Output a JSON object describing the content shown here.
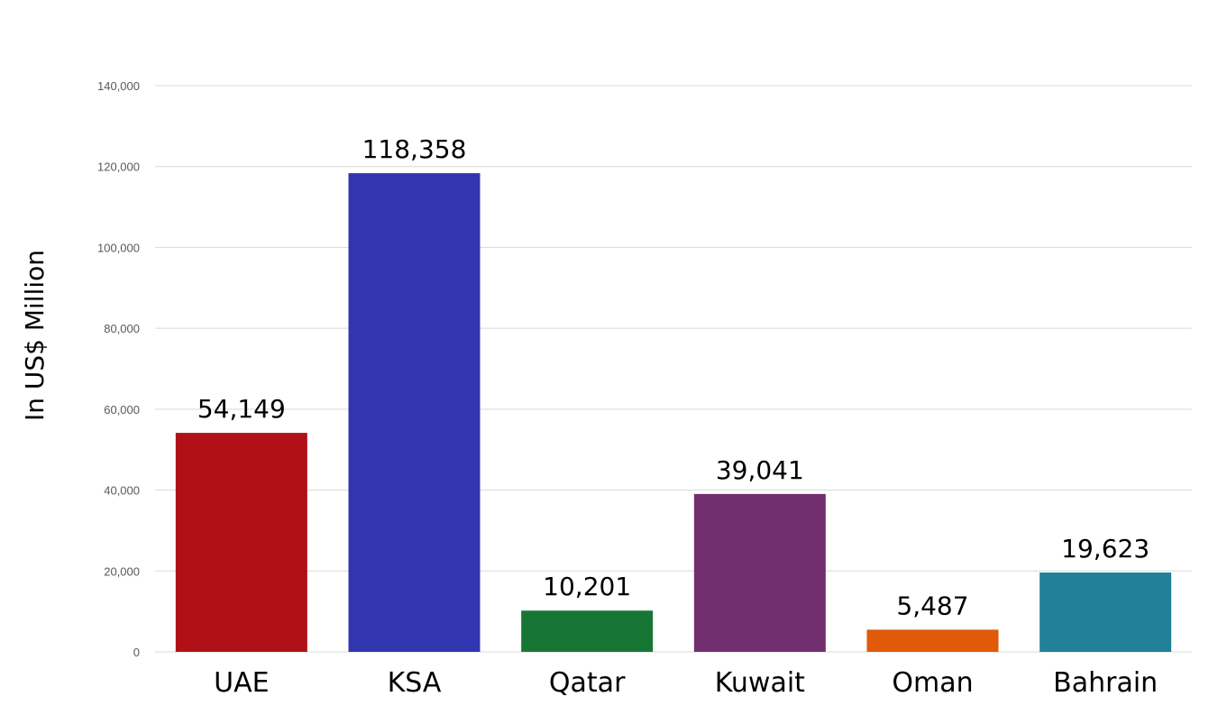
{
  "chart_data": {
    "type": "bar",
    "title": "",
    "xlabel": "",
    "ylabel": "In US$ Million",
    "categories": [
      "UAE",
      "KSA",
      "Qatar",
      "Kuwait",
      "Oman",
      "Bahrain"
    ],
    "values": [
      54149,
      118358,
      10201,
      39041,
      5487,
      19623
    ],
    "value_labels": [
      "54,149",
      "118,358",
      "10,201",
      "39,041",
      "5,487",
      "19,623"
    ],
    "colors": [
      "#b01117",
      "#3136b0",
      "#187634",
      "#722f6f",
      "#e05a0a",
      "#228199"
    ],
    "ylim": [
      0,
      140000
    ],
    "yticks": [
      0,
      20000,
      40000,
      60000,
      80000,
      100000,
      120000,
      140000
    ],
    "ytick_labels": [
      "0",
      "20,000",
      "40,000",
      "60,000",
      "80,000",
      "100,000",
      "120,000",
      "140,000"
    ],
    "grid": true,
    "legend": "none"
  }
}
